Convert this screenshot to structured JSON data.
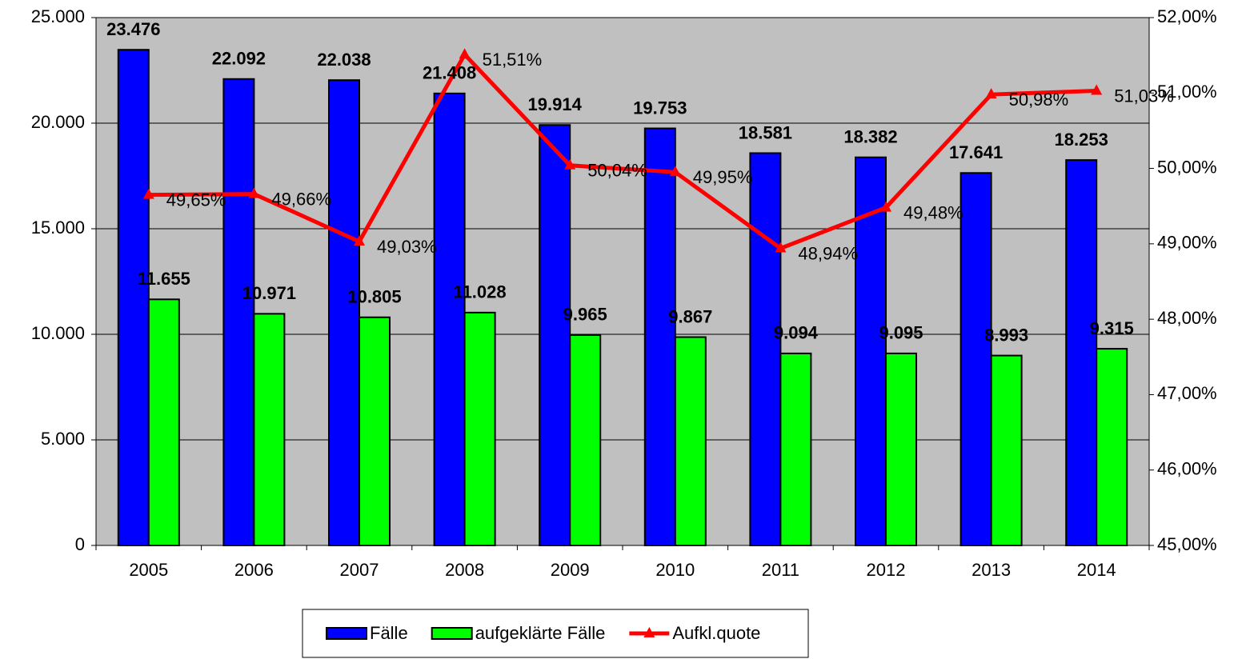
{
  "chart_data": {
    "type": "bar",
    "categories": [
      "2005",
      "2006",
      "2007",
      "2008",
      "2009",
      "2010",
      "2011",
      "2012",
      "2013",
      "2014"
    ],
    "series": [
      {
        "name": "Fälle",
        "type": "bar",
        "color": "#0000ff",
        "values": [
          23476,
          22092,
          22038,
          21408,
          19914,
          19753,
          18581,
          18382,
          17641,
          18253
        ],
        "value_labels": [
          "23.476",
          "22.092",
          "22.038",
          "21.408",
          "19.914",
          "19.753",
          "18.581",
          "18.382",
          "17.641",
          "18.253"
        ]
      },
      {
        "name": "aufgeklärte Fälle",
        "type": "bar",
        "color": "#00ff00",
        "values": [
          11655,
          10971,
          10805,
          11028,
          9965,
          9867,
          9094,
          9095,
          8993,
          9315
        ],
        "value_labels": [
          "11.655",
          "10.971",
          "10.805",
          "11.028",
          "9.965",
          "9.867",
          "9.094",
          "9.095",
          "8.993",
          "9.315"
        ]
      },
      {
        "name": "Aufkl.quote",
        "type": "line",
        "axis": "y2",
        "color": "#ff0000",
        "values": [
          49.65,
          49.66,
          49.03,
          51.51,
          50.04,
          49.95,
          48.94,
          49.48,
          50.98,
          51.03
        ],
        "value_labels": [
          "49,65%",
          "49,66%",
          "49,03%",
          "51,51%",
          "50,04%",
          "49,95%",
          "48,94%",
          "49,48%",
          "50,98%",
          "51,03%"
        ]
      }
    ],
    "ylim": [
      0,
      25000
    ],
    "yticks": [
      0,
      {
        "value": 5000,
        "label": "5.000"
      },
      {
        "value": 10000,
        "label": "10.000"
      },
      {
        "value": 15000,
        "label": "15.000"
      },
      {
        "value": 20000,
        "label": "20.000"
      },
      {
        "value": 25000,
        "label": "25.000"
      }
    ],
    "y2lim": [
      45,
      52
    ],
    "y2ticks": [
      {
        "value": 45,
        "label": "45,00%"
      },
      {
        "value": 46,
        "label": "46,00%"
      },
      {
        "value": 47,
        "label": "47,00%"
      },
      {
        "value": 48,
        "label": "48,00%"
      },
      {
        "value": 49,
        "label": "49,00%"
      },
      {
        "value": 50,
        "label": "50,00%"
      },
      {
        "value": 51,
        "label": "51,00%"
      },
      {
        "value": 52,
        "label": "52,00%"
      }
    ],
    "grid": true,
    "legend": "bottom",
    "plot_background": "#c0c0c0"
  }
}
